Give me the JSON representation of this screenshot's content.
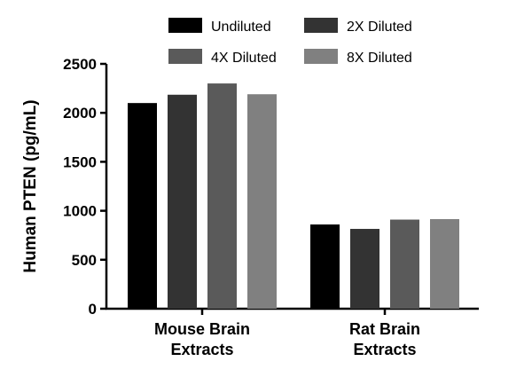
{
  "chart_data": {
    "type": "bar",
    "title": "",
    "xlabel": "",
    "ylabel": "Human PTEN (pg/mL)",
    "ylim": [
      0,
      2500
    ],
    "yticks": [
      0,
      500,
      1000,
      1500,
      2000,
      2500
    ],
    "categories": [
      {
        "line1": "Mouse Brain",
        "line2": "Extracts"
      },
      {
        "line1": "Rat Brain",
        "line2": "Extracts"
      }
    ],
    "series": [
      {
        "name": "Undiluted",
        "color": "#000000",
        "values": [
          2100,
          860
        ]
      },
      {
        "name": "2X Diluted",
        "color": "#333333",
        "values": [
          2185,
          815
        ]
      },
      {
        "name": "4X Diluted",
        "color": "#5a5a5a",
        "values": [
          2300,
          910
        ]
      },
      {
        "name": "8X Diluted",
        "color": "#808080",
        "values": [
          2190,
          915
        ]
      }
    ],
    "legend_position": "top"
  }
}
